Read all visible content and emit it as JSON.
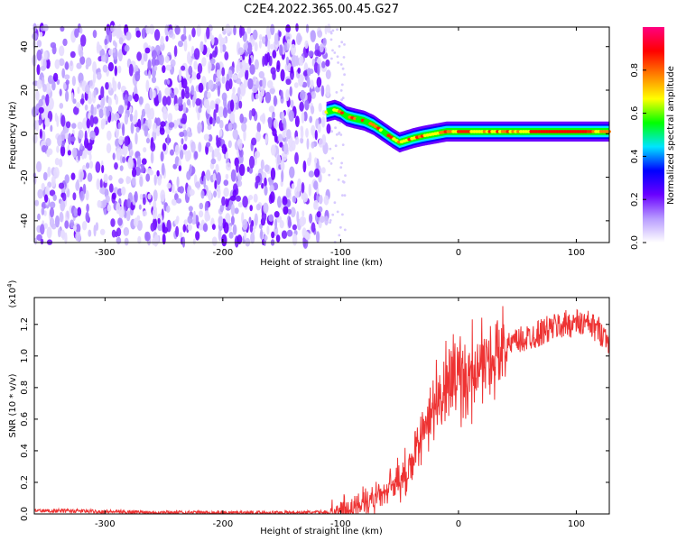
{
  "chart_data": [
    {
      "type": "heatmap",
      "title": "C2E4.2022.365.00.45.G27",
      "xlabel": "Height of straight line (km)",
      "ylabel": "Frequency (Hz)",
      "xlim": [
        -360,
        128
      ],
      "ylim": [
        -50,
        49
      ],
      "xticks": [
        -300,
        -200,
        -100,
        0,
        100
      ],
      "xtick_labels": [
        "-300",
        "-200",
        "-100",
        "0",
        "100"
      ],
      "yticks": [
        -40,
        -20,
        0,
        20,
        40
      ],
      "ytick_labels": [
        "-40",
        "-20",
        "0",
        "20",
        "40"
      ],
      "noise_region_x": [
        -360,
        -110
      ],
      "signal_track": {
        "x": [
          -112,
          -105,
          -100,
          -95,
          -88,
          -80,
          -72,
          -64,
          -56,
          -50,
          -44,
          -38,
          -30,
          -20,
          -10,
          0,
          20,
          50,
          80,
          110,
          128
        ],
        "frequency": [
          10,
          11,
          10,
          8,
          7,
          6,
          4,
          1,
          -2,
          -4,
          -3,
          -2,
          -1,
          0,
          1,
          1,
          1,
          1,
          1,
          1,
          1
        ]
      },
      "colorbar": {
        "label": "Normalized spectral amplitude",
        "range": [
          0.0,
          1.0
        ],
        "ticks": [
          0.0,
          0.2,
          0.4,
          0.6,
          0.8
        ],
        "tick_labels": [
          "0.0",
          "0.2",
          "0.4",
          "0.6",
          "0.8"
        ],
        "colors": [
          "#ffffff",
          "#b89cff",
          "#6a00ff",
          "#0000ff",
          "#00e5ff",
          "#00ff00",
          "#ffff00",
          "#ff8000",
          "#ff0000",
          "#ff0080"
        ]
      }
    },
    {
      "type": "line",
      "xlabel": "Height of straight line (km)",
      "ylabel": "SNR (10 * v/v)",
      "scale_label": "(x10",
      "scale_exp": "4",
      "scale_close": ")",
      "xlim": [
        -360,
        128
      ],
      "ylim": [
        0.0,
        1.37
      ],
      "xticks": [
        -300,
        -200,
        -100,
        0,
        100
      ],
      "xtick_labels": [
        "-300",
        "-200",
        "-100",
        "0",
        "100"
      ],
      "yticks": [
        0.0,
        0.2,
        0.4,
        0.6,
        0.8,
        1.0,
        1.2
      ],
      "ytick_labels": [
        "0.0",
        "0.2",
        "0.4",
        "0.6",
        "0.8",
        "1.0",
        "1.2"
      ],
      "series": [
        {
          "name": "SNR",
          "color": "#ee3333",
          "x": [
            -360,
            -330,
            -300,
            -250,
            -200,
            -150,
            -110,
            -100,
            -90,
            -80,
            -70,
            -60,
            -50,
            -40,
            -30,
            -25,
            -20,
            -15,
            -10,
            -5,
            0,
            10,
            20,
            30,
            40,
            50,
            60,
            70,
            80,
            90,
            100,
            110,
            120,
            128
          ],
          "y": [
            0.02,
            0.02,
            0.015,
            0.01,
            0.008,
            0.008,
            0.01,
            0.02,
            0.04,
            0.07,
            0.1,
            0.15,
            0.22,
            0.3,
            0.5,
            0.62,
            0.7,
            0.74,
            0.8,
            0.84,
            0.85,
            0.88,
            0.93,
            1.0,
            1.05,
            1.09,
            1.12,
            1.15,
            1.18,
            1.2,
            1.21,
            1.2,
            1.16,
            1.1
          ]
        }
      ]
    }
  ]
}
